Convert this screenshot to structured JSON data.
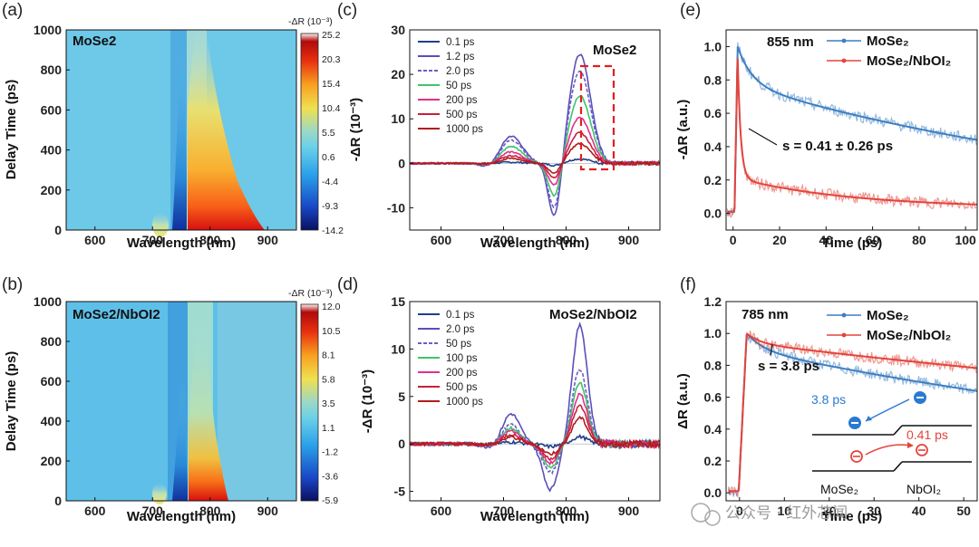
{
  "chart_data": [
    {
      "panel": "(a)",
      "type": "heatmap",
      "label": "MoSe2",
      "xlabel": "Wavelength (nm)",
      "ylabel": "Delay Time (ps)",
      "xlim": [
        550,
        950
      ],
      "ylim": [
        0,
        1000
      ],
      "xticks": [
        "600",
        "700",
        "800",
        "900"
      ],
      "yticks": [
        "0",
        "200",
        "400",
        "600",
        "800",
        "1000"
      ],
      "colorbar_title": "-ΔR (10⁻³)",
      "colorbar_ticks": [
        "25.2",
        "20.3",
        "15.4",
        "10.4",
        "5.5",
        "0.6",
        "-4.4",
        "-9.3",
        "-14.2"
      ],
      "clim": [
        -14.2,
        25.2
      ]
    },
    {
      "panel": "(b)",
      "type": "heatmap",
      "label": "MoSe2/NbOI2",
      "xlabel": "Wavelength (nm)",
      "ylabel": "Delay Time (ps)",
      "xlim": [
        550,
        950
      ],
      "ylim": [
        0,
        1000
      ],
      "xticks": [
        "600",
        "700",
        "800",
        "900"
      ],
      "yticks": [
        "0",
        "200",
        "400",
        "600",
        "800",
        "1000"
      ],
      "colorbar_title": "-ΔR (10⁻³)",
      "colorbar_ticks": [
        "12.0",
        "10.5",
        "8.1",
        "5.8",
        "3.5",
        "1.1",
        "-1.2",
        "-3.6",
        "-5.9"
      ],
      "clim": [
        -5.9,
        12.0
      ]
    },
    {
      "panel": "(c)",
      "type": "line",
      "label": "MoSe2",
      "xlabel": "Wavelength (nm)",
      "ylabel": "-ΔR (10⁻³)",
      "xlim": [
        550,
        950
      ],
      "ylim": [
        -15,
        30
      ],
      "xticks": [
        600,
        700,
        800,
        900
      ],
      "yticks": [
        -10,
        0,
        10,
        20,
        30
      ],
      "series": [
        {
          "name": "0.1 ps",
          "color": "#1f3f8c",
          "dash": false,
          "scale": 0.04
        },
        {
          "name": "1.2 ps",
          "color": "#5a50b8",
          "dash": false,
          "scale": 1.0
        },
        {
          "name": "2.0 ps",
          "color": "#6a5fc4",
          "dash": true,
          "scale": 0.85
        },
        {
          "name": "50 ps",
          "color": "#3fc46a",
          "dash": false,
          "scale": 0.62
        },
        {
          "name": "200 ps",
          "color": "#e0308c",
          "dash": false,
          "scale": 0.42
        },
        {
          "name": "500 ps",
          "color": "#c8203c",
          "dash": false,
          "scale": 0.28
        },
        {
          "name": "1000 ps",
          "color": "#b01c1c",
          "dash": false,
          "scale": 0.18
        }
      ]
    },
    {
      "panel": "(d)",
      "type": "line",
      "label": "MoSe2/NbOI2",
      "xlabel": "Wavelength (nm)",
      "ylabel": "-ΔR (10⁻³)",
      "xlim": [
        550,
        950
      ],
      "ylim": [
        -6,
        15
      ],
      "xticks": [
        600,
        700,
        800,
        900
      ],
      "yticks": [
        -5,
        0,
        5,
        10,
        15
      ],
      "series": [
        {
          "name": "0.1 ps",
          "color": "#1f3f8c",
          "dash": false,
          "scale": 0.06
        },
        {
          "name": "2.0 ps",
          "color": "#5a50b8",
          "dash": false,
          "scale": 1.0
        },
        {
          "name": "50 ps",
          "color": "#6a5fc4",
          "dash": true,
          "scale": 0.63
        },
        {
          "name": "100 ps",
          "color": "#3fc46a",
          "dash": false,
          "scale": 0.52
        },
        {
          "name": "200 ps",
          "color": "#e0308c",
          "dash": false,
          "scale": 0.42
        },
        {
          "name": "500 ps",
          "color": "#c8203c",
          "dash": false,
          "scale": 0.32
        },
        {
          "name": "1000 ps",
          "color": "#b01c1c",
          "dash": false,
          "scale": 0.22
        }
      ]
    },
    {
      "panel": "(e)",
      "type": "line",
      "xlabel": "Time (ps)",
      "ylabel": "-ΔR (a.u.)",
      "xlim": [
        -3,
        105
      ],
      "ylim": [
        -0.1,
        1.1
      ],
      "xticks": [
        0,
        20,
        40,
        60,
        80,
        100
      ],
      "yticks": [
        0.0,
        0.2,
        0.4,
        0.6,
        0.8,
        1.0
      ],
      "annotation_wavelength": "855 nm",
      "annotation_fit": "s = 0.41 ± 0.26 ps",
      "series": [
        {
          "name": "MoSe₂",
          "color": "#3d7fc2",
          "fit": {
            "a1": 0.22,
            "t1": 6,
            "a2": 0.78,
            "t2": 180
          }
        },
        {
          "name": "MoSe₂/NbOI₂",
          "color": "#e2453c",
          "fit": {
            "a1": 0.72,
            "t1": 1.3,
            "a2": 0.18,
            "t2": 50,
            "c": 0.03
          }
        }
      ]
    },
    {
      "panel": "(f)",
      "type": "line",
      "xlabel": "Time (ps)",
      "ylabel": "ΔR (a.u.)",
      "xlim": [
        -3,
        53
      ],
      "ylim": [
        -0.05,
        1.2
      ],
      "xticks": [
        0,
        10,
        20,
        30,
        40,
        50
      ],
      "yticks": [
        0.0,
        0.2,
        0.4,
        0.6,
        0.8,
        1.0,
        1.2
      ],
      "annotation_wavelength": "785 nm",
      "annotation_fit": "s = 3.8 ps",
      "series": [
        {
          "name": "MoSe₂",
          "color": "#3d7fc2",
          "fit": {
            "a1": 0.1,
            "t1": 3.8,
            "a2": 0.9,
            "t2": 150
          }
        },
        {
          "name": "MoSe₂/NbOI₂",
          "color": "#e2453c",
          "fit": {
            "a1": 0.06,
            "t1": 3,
            "a2": 0.94,
            "t2": 280
          }
        }
      ],
      "inset": {
        "hole_time": "3.8 ps",
        "electron_time": "0.41 ps",
        "left_label": "MoSe₂",
        "right_label": "NbOI₂"
      }
    }
  ],
  "watermark": "公众号 · 红外芯闻"
}
